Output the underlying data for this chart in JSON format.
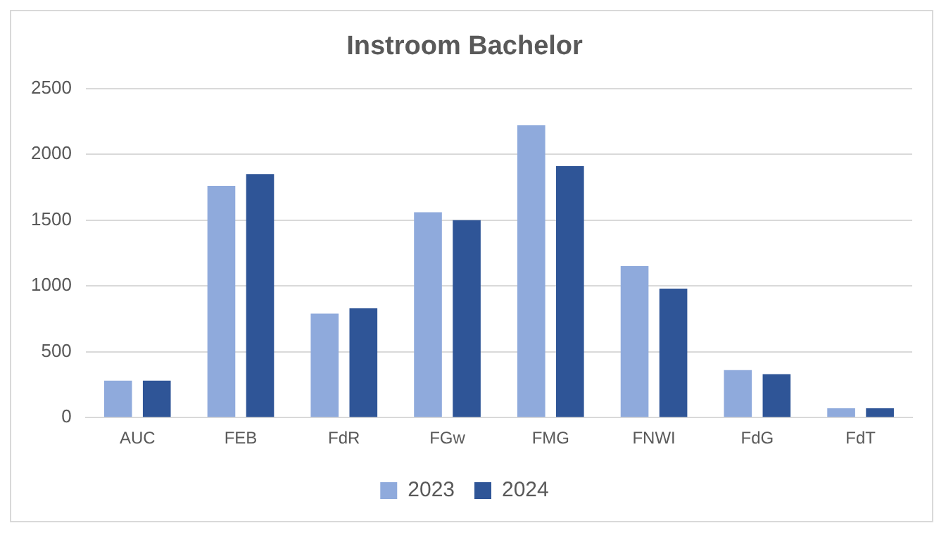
{
  "chart_data": {
    "type": "bar",
    "title": "Instroom Bachelor",
    "categories": [
      "AUC",
      "FEB",
      "FdR",
      "FGw",
      "FMG",
      "FNWI",
      "FdG",
      "FdT"
    ],
    "series": [
      {
        "name": "2023",
        "color": "#8faadc",
        "values": [
          280,
          1760,
          790,
          1560,
          2220,
          1150,
          360,
          70
        ]
      },
      {
        "name": "2024",
        "color": "#2f5597",
        "values": [
          280,
          1850,
          830,
          1500,
          1910,
          980,
          330,
          70
        ]
      }
    ],
    "ylim": [
      0,
      2500
    ],
    "yticks": [
      0,
      500,
      1000,
      1500,
      2000,
      2500
    ],
    "grid": "y",
    "legend": "bottom"
  }
}
